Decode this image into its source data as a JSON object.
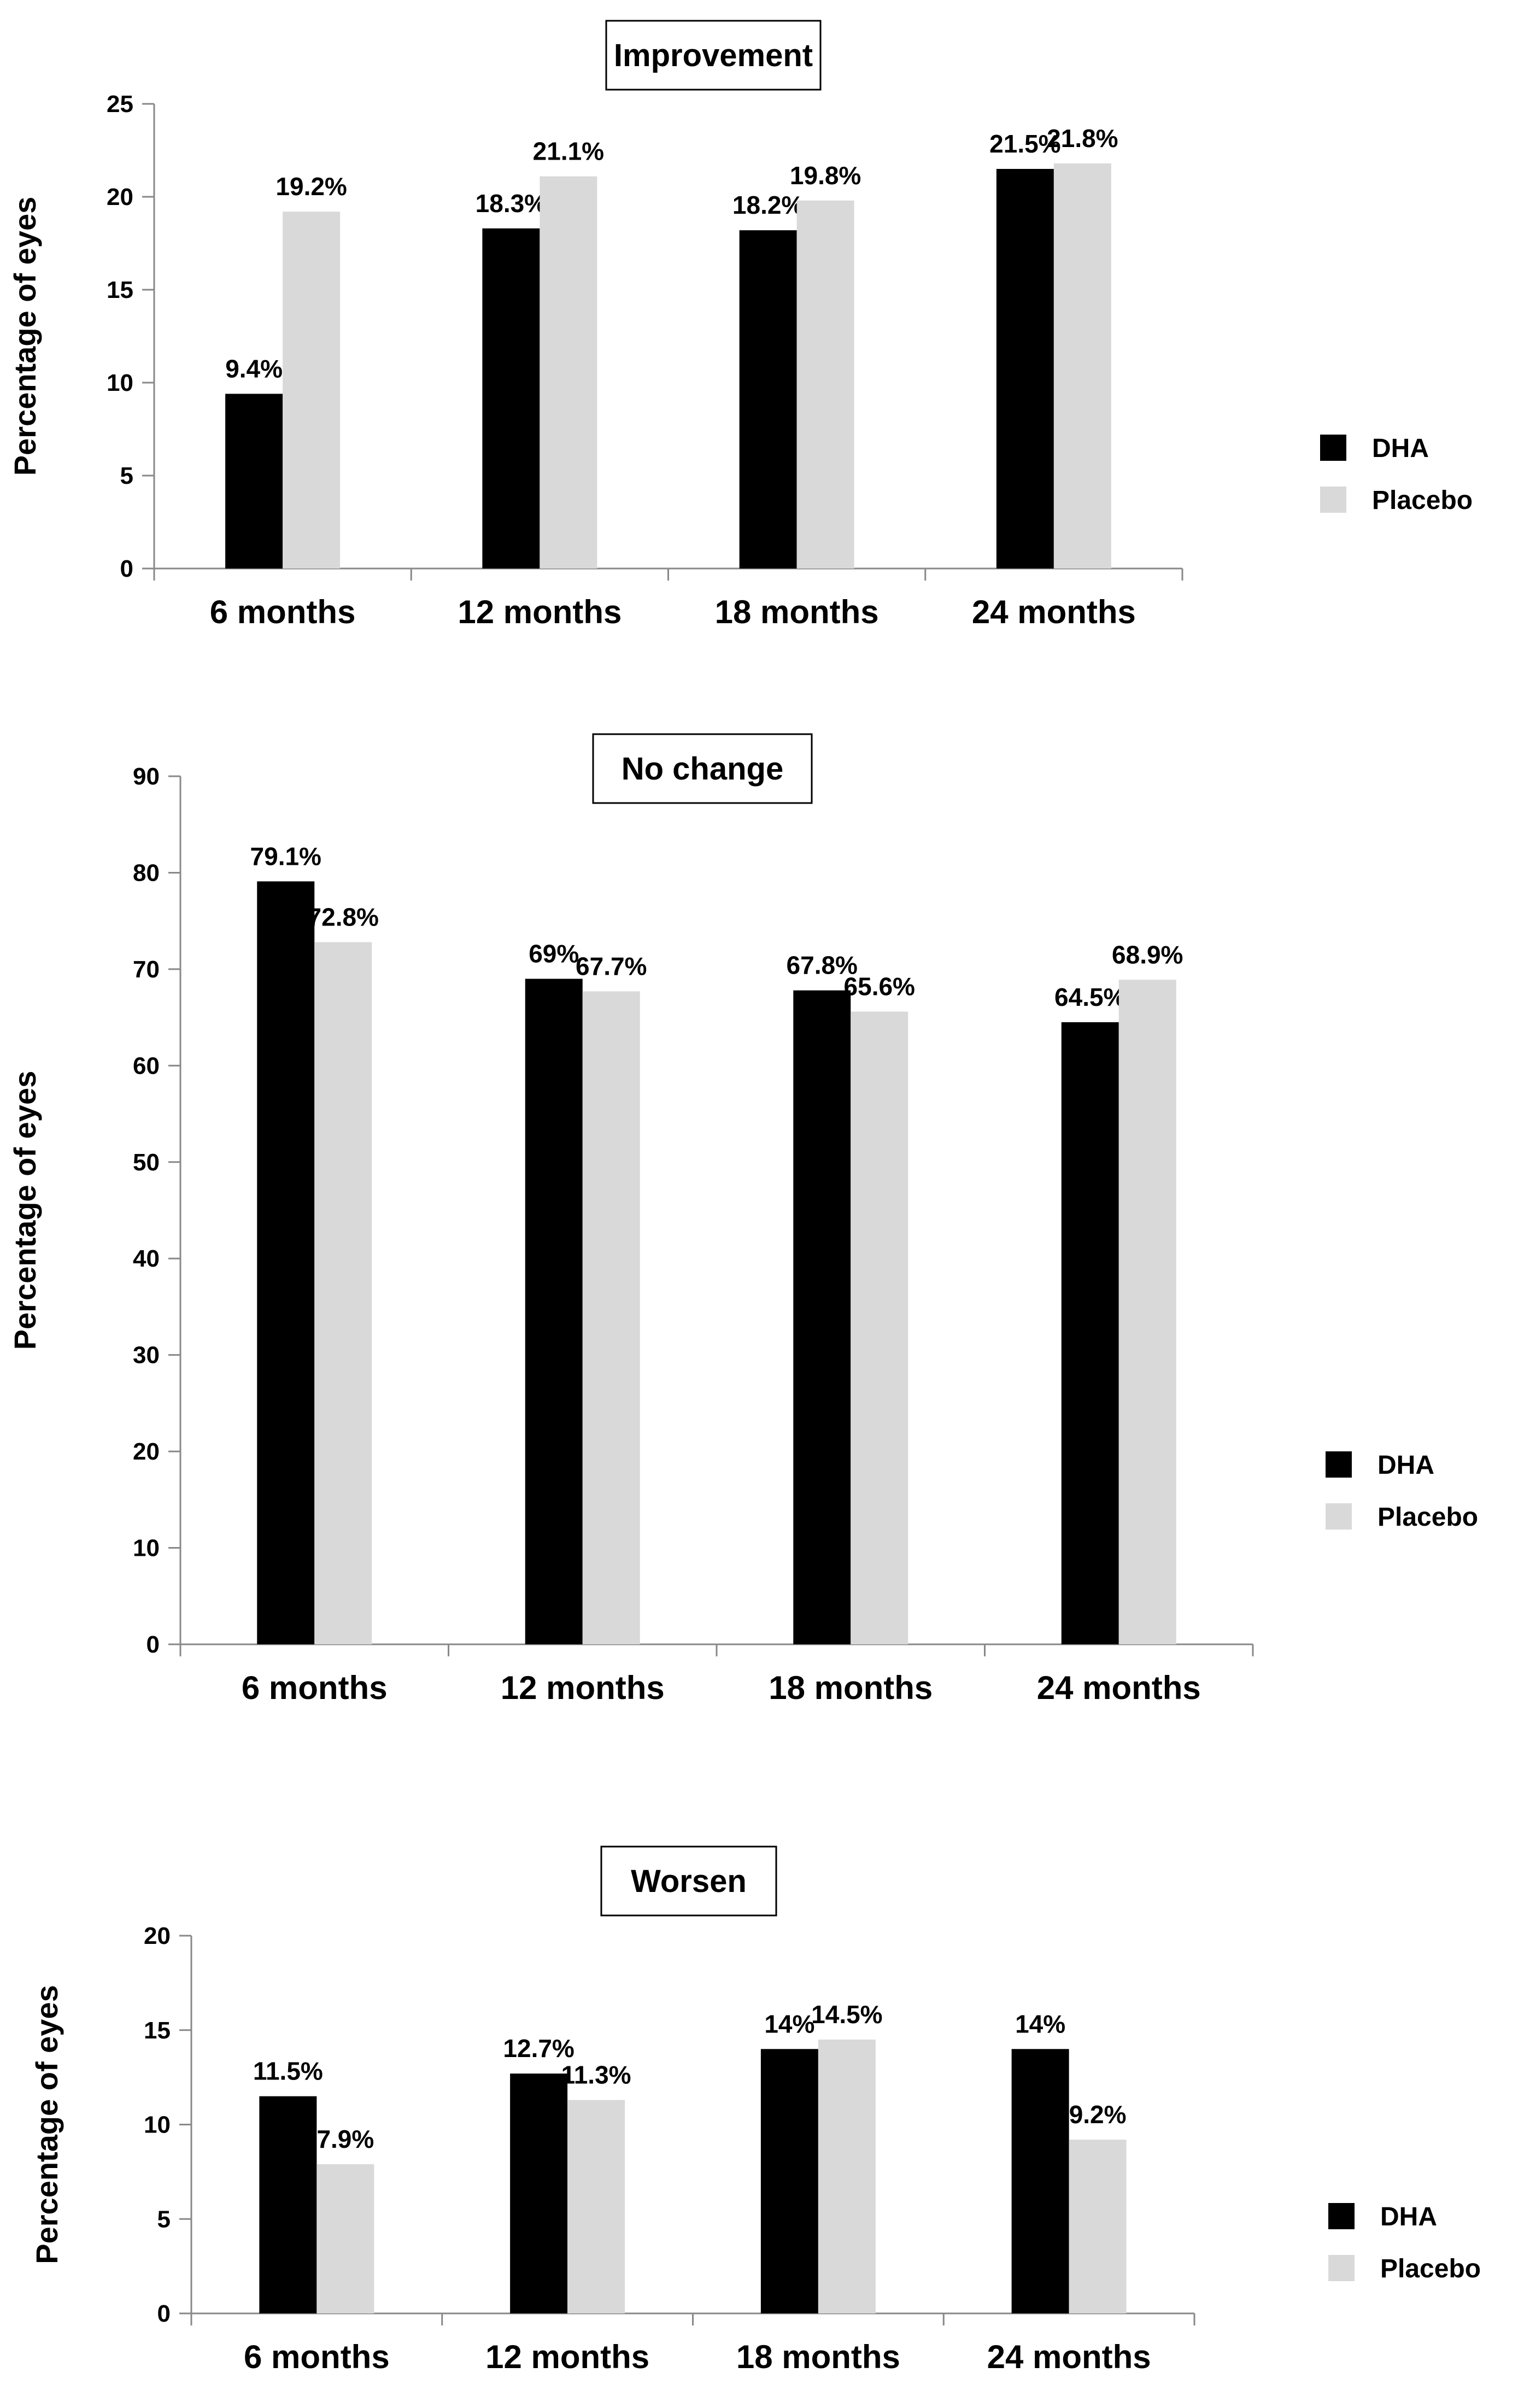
{
  "figure": {
    "series_colors": {
      "DHA": "#000000",
      "Placebo": "#d9d9d9"
    }
  },
  "chart_data": [
    {
      "type": "bar",
      "title": "Improvement",
      "ylabel": "Percentage of eyes",
      "xlabel": "",
      "categories": [
        "6 months",
        "12 months",
        "18 months",
        "24 months"
      ],
      "ylim": [
        0,
        25
      ],
      "yticks": [
        0,
        5,
        10,
        15,
        20,
        25
      ],
      "grid": false,
      "legend": "right",
      "series": [
        {
          "name": "DHA",
          "color": "#000000",
          "values": [
            9.4,
            18.3,
            18.2,
            21.5
          ],
          "labels": [
            "9.4%",
            "18.3%",
            "18.2%",
            "21.5%"
          ]
        },
        {
          "name": "Placebo",
          "color": "#d9d9d9",
          "values": [
            19.2,
            21.1,
            19.8,
            21.8
          ],
          "labels": [
            "19.2%",
            "21.1%",
            "19.8%",
            "21.8%"
          ]
        }
      ]
    },
    {
      "type": "bar",
      "title": "No change",
      "ylabel": "Percentage of eyes",
      "xlabel": "",
      "categories": [
        "6 months",
        "12 months",
        "18 months",
        "24 months"
      ],
      "ylim": [
        0,
        90
      ],
      "yticks": [
        0,
        10,
        20,
        30,
        40,
        50,
        60,
        70,
        80,
        90
      ],
      "grid": false,
      "legend": "right",
      "series": [
        {
          "name": "DHA",
          "color": "#000000",
          "values": [
            79.1,
            69,
            67.8,
            64.5
          ],
          "labels": [
            "79.1%",
            "69%",
            "67.8%",
            "64.5%"
          ]
        },
        {
          "name": "Placebo",
          "color": "#d9d9d9",
          "values": [
            72.8,
            67.7,
            65.6,
            68.9
          ],
          "labels": [
            "72.8%",
            "67.7%",
            "65.6%",
            "68.9%"
          ]
        }
      ]
    },
    {
      "type": "bar",
      "title": "Worsen",
      "ylabel": "Percentage of eyes",
      "xlabel": "",
      "categories": [
        "6 months",
        "12 months",
        "18 months",
        "24 months"
      ],
      "ylim": [
        0,
        20
      ],
      "yticks": [
        0,
        5,
        10,
        15,
        20
      ],
      "grid": false,
      "legend": "right",
      "series": [
        {
          "name": "DHA",
          "color": "#000000",
          "values": [
            11.5,
            12.7,
            14,
            14
          ],
          "labels": [
            "11.5%",
            "12.7%",
            "14%",
            "14%"
          ]
        },
        {
          "name": "Placebo",
          "color": "#d9d9d9",
          "values": [
            7.9,
            11.3,
            14.5,
            9.2
          ],
          "labels": [
            "7.9%",
            "11.3%",
            "14.5%",
            "9.2%"
          ]
        }
      ]
    }
  ]
}
